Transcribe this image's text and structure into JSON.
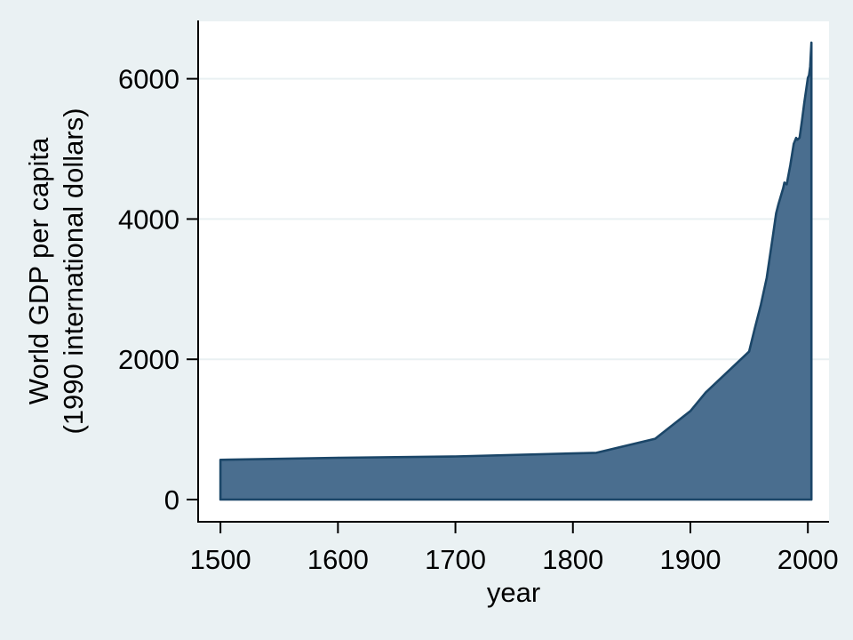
{
  "chart_data": {
    "type": "area",
    "xlabel": "year",
    "ylabel_line1": "World GDP per capita",
    "ylabel_line2": "(1990 international dollars)",
    "x_ticks": [
      1500,
      1600,
      1700,
      1800,
      1900,
      2000
    ],
    "y_ticks": [
      0,
      2000,
      4000,
      6000
    ],
    "xlim": [
      1481,
      2018
    ],
    "ylim": [
      -317,
      6819
    ],
    "grid": "horizontal",
    "legend": "none",
    "colors": {
      "figure_background": "#EAF1F3",
      "plot_background": "#FFFFFF",
      "gridline": "#E9F0F2",
      "axis": "#000000",
      "text": "#000000"
    },
    "series": [
      {
        "name": "World GDP per capita (1990 international dollars)",
        "fill_color": "#4A6E8F",
        "line_color": "#1B4668",
        "baseline": 0,
        "points": [
          [
            1500,
            566
          ],
          [
            1600,
            596
          ],
          [
            1700,
            615
          ],
          [
            1820,
            667
          ],
          [
            1870,
            867
          ],
          [
            1900,
            1262
          ],
          [
            1913,
            1526
          ],
          [
            1950,
            2111
          ],
          [
            1955,
            2453
          ],
          [
            1960,
            2777
          ],
          [
            1965,
            3162
          ],
          [
            1970,
            3729
          ],
          [
            1973,
            4083
          ],
          [
            1975,
            4212
          ],
          [
            1979,
            4439
          ],
          [
            1980,
            4520
          ],
          [
            1982,
            4494
          ],
          [
            1985,
            4764
          ],
          [
            1988,
            5072
          ],
          [
            1990,
            5157
          ],
          [
            1991,
            5130
          ],
          [
            1993,
            5160
          ],
          [
            1995,
            5404
          ],
          [
            1997,
            5660
          ],
          [
            2000,
            6012
          ],
          [
            2001,
            6049
          ],
          [
            2002,
            6172
          ],
          [
            2003,
            6516
          ]
        ]
      }
    ]
  }
}
